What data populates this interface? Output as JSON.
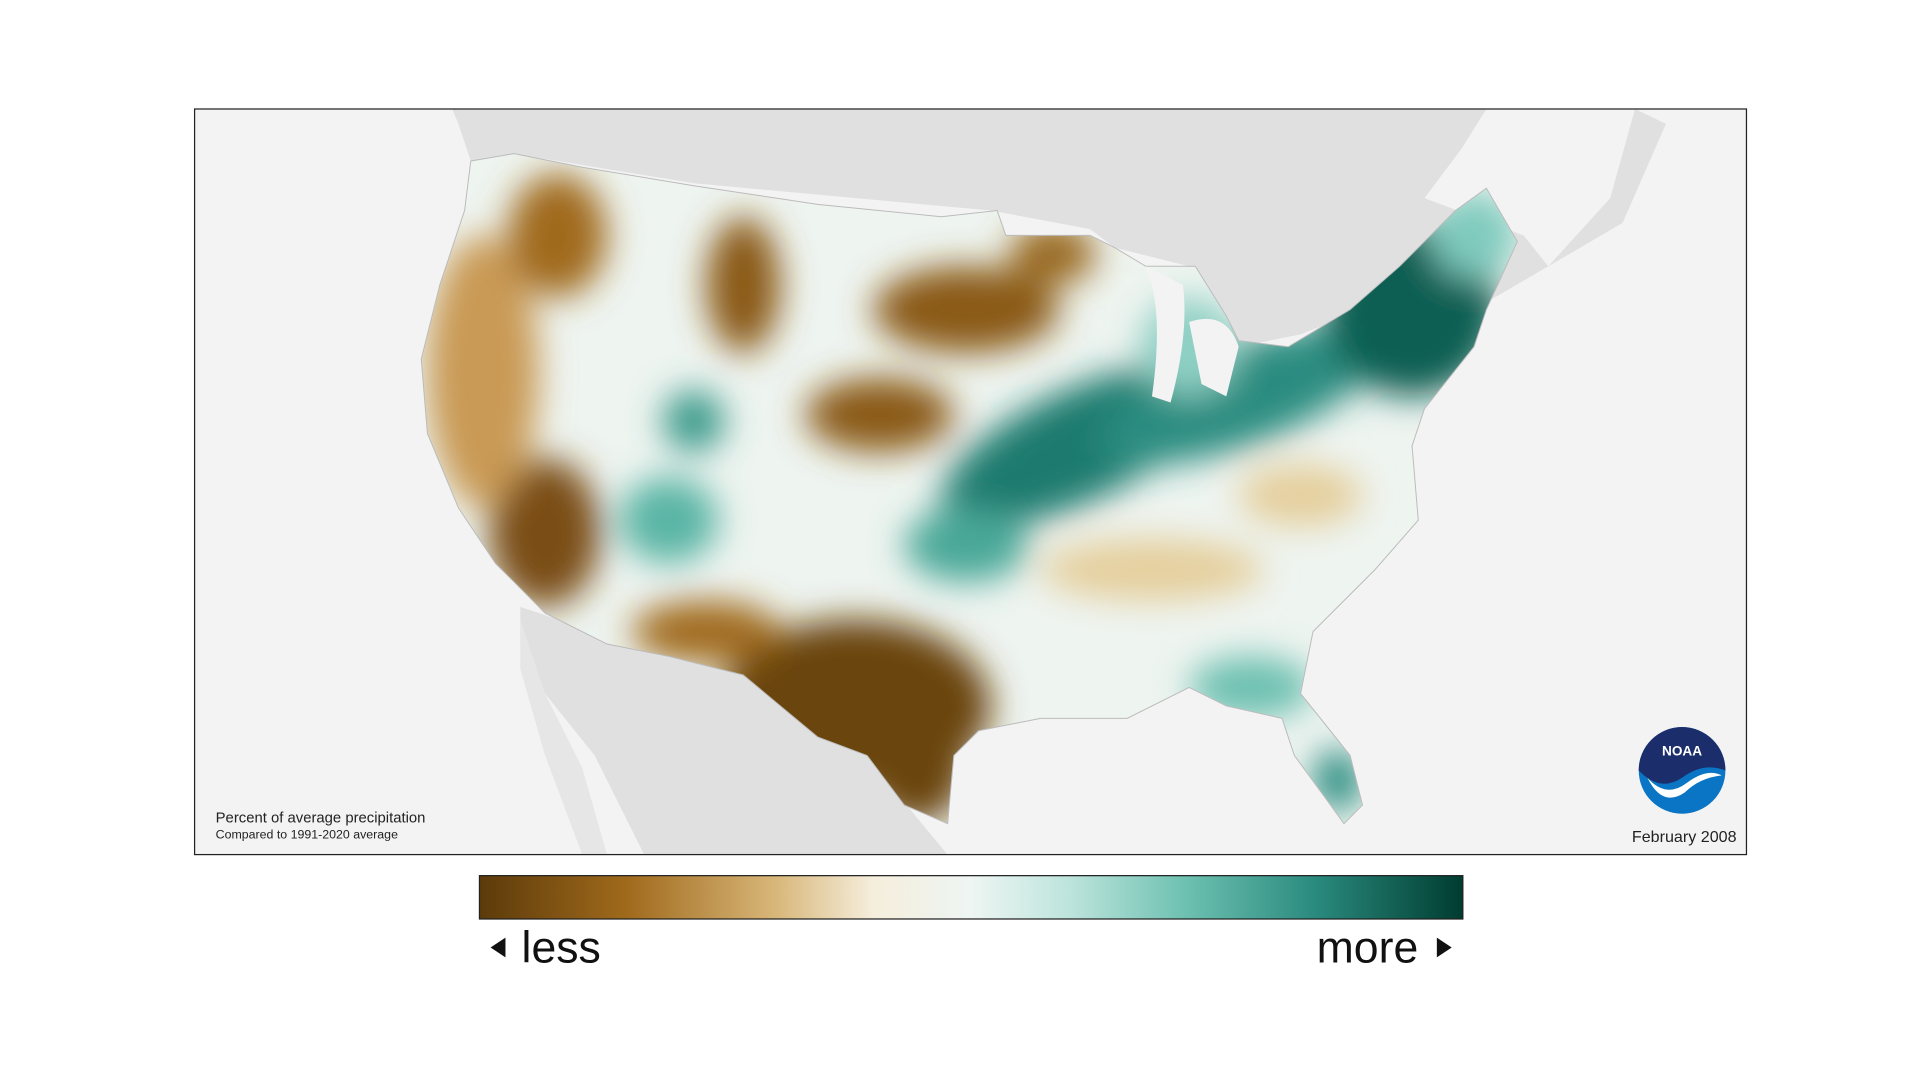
{
  "map": {
    "caption_title": "Percent of average precipitation",
    "caption_subtitle": "Compared to 1991-2020 average",
    "date": "February 2008"
  },
  "legend": {
    "less": "less",
    "more": "more"
  },
  "logo": {
    "text": "NOAA"
  }
}
